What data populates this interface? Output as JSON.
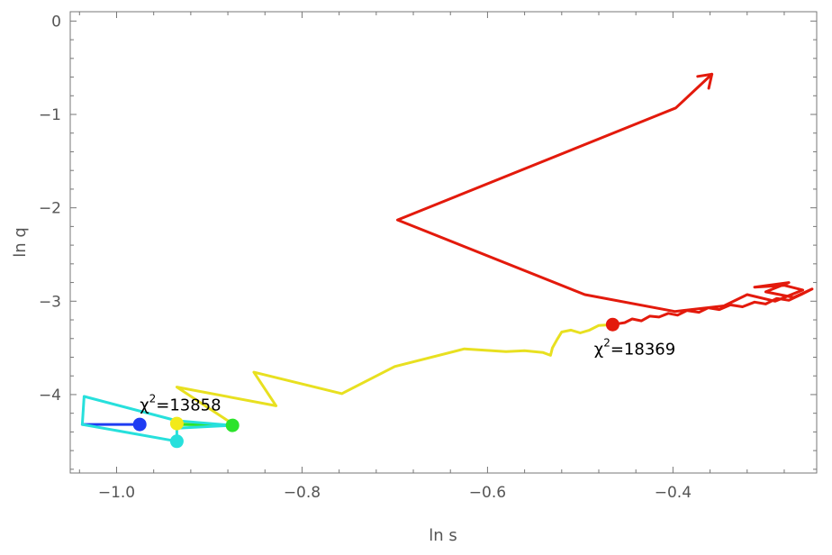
{
  "chart_data": {
    "type": "line",
    "xlabel": "ln s",
    "ylabel": "ln q",
    "xlim": [
      -1.05,
      -0.245
    ],
    "ylim": [
      -4.84,
      0.1
    ],
    "grid": false,
    "x_ticks": [
      {
        "value": -1.0,
        "label": "−1.0"
      },
      {
        "value": -0.8,
        "label": "−0.8"
      },
      {
        "value": -0.6,
        "label": "−0.6"
      },
      {
        "value": -0.4,
        "label": "−0.4"
      }
    ],
    "y_ticks": [
      {
        "value": 0,
        "label": "0"
      },
      {
        "value": -1,
        "label": "−1"
      },
      {
        "value": -2,
        "label": "−2"
      },
      {
        "value": -3,
        "label": "−3"
      },
      {
        "value": -4,
        "label": "−4"
      }
    ],
    "series": [
      {
        "color": "#e31a0c",
        "points": [
          [
            -0.465,
            -3.25
          ],
          [
            -0.452,
            -3.23
          ],
          [
            -0.444,
            -3.19
          ],
          [
            -0.434,
            -3.21
          ],
          [
            -0.425,
            -3.16
          ],
          [
            -0.415,
            -3.17
          ],
          [
            -0.405,
            -3.13
          ],
          [
            -0.395,
            -3.15
          ],
          [
            -0.385,
            -3.1
          ],
          [
            -0.372,
            -3.12
          ],
          [
            -0.362,
            -3.07
          ],
          [
            -0.35,
            -3.09
          ],
          [
            -0.338,
            -3.04
          ],
          [
            -0.325,
            -3.06
          ],
          [
            -0.312,
            -3.01
          ],
          [
            -0.3,
            -3.03
          ],
          [
            -0.288,
            -2.97
          ],
          [
            -0.275,
            -2.99
          ],
          [
            -0.262,
            -2.93
          ],
          [
            -0.25,
            -2.87
          ],
          [
            -0.27,
            -2.96
          ],
          [
            -0.3,
            -2.9
          ],
          [
            -0.275,
            -2.8
          ],
          [
            -0.312,
            -2.85
          ],
          [
            -0.28,
            -2.83
          ],
          [
            -0.26,
            -2.88
          ],
          [
            -0.29,
            -3.0
          ],
          [
            -0.32,
            -2.93
          ],
          [
            -0.345,
            -3.05
          ],
          [
            -0.398,
            -3.11
          ],
          [
            -0.495,
            -2.93
          ],
          [
            -0.697,
            -2.13
          ],
          [
            -0.397,
            -0.93
          ],
          [
            -0.358,
            -0.57
          ]
        ]
      },
      {
        "color": "#e8e020",
        "points": [
          [
            -0.465,
            -3.25
          ],
          [
            -0.48,
            -3.26
          ],
          [
            -0.49,
            -3.31
          ],
          [
            -0.5,
            -3.34
          ],
          [
            -0.51,
            -3.31
          ],
          [
            -0.52,
            -3.33
          ],
          [
            -0.525,
            -3.41
          ],
          [
            -0.53,
            -3.5
          ],
          [
            -0.532,
            -3.58
          ],
          [
            -0.54,
            -3.55
          ],
          [
            -0.56,
            -3.53
          ],
          [
            -0.58,
            -3.54
          ],
          [
            -0.625,
            -3.51
          ],
          [
            -0.7,
            -3.7
          ],
          [
            -0.757,
            -3.99
          ],
          [
            -0.852,
            -3.76
          ],
          [
            -0.828,
            -4.12
          ],
          [
            -0.935,
            -3.92
          ],
          [
            -0.88,
            -4.28
          ],
          [
            -0.875,
            -4.33
          ],
          [
            -0.935,
            -4.31
          ]
        ]
      },
      {
        "color": "#2be32b",
        "points": [
          [
            -0.935,
            -4.32
          ],
          [
            -0.875,
            -4.33
          ]
        ]
      },
      {
        "color": "#1f3cf2",
        "points": [
          [
            -0.975,
            -4.32
          ],
          [
            -1.037,
            -4.32
          ]
        ]
      },
      {
        "color": "#27e0dc",
        "points": [
          [
            -1.037,
            -4.32
          ],
          [
            -1.035,
            -4.02
          ],
          [
            -0.935,
            -4.28
          ],
          [
            -0.875,
            -4.33
          ],
          [
            -0.935,
            -4.36
          ],
          [
            -0.935,
            -4.5
          ],
          [
            -1.037,
            -4.32
          ]
        ]
      }
    ],
    "markers": [
      {
        "x": -0.465,
        "y": -3.25,
        "color": "#e31a0c"
      },
      {
        "x": -0.975,
        "y": -4.32,
        "color": "#1f3cf2"
      },
      {
        "x": -0.935,
        "y": -4.31,
        "color": "#f2ea1a"
      },
      {
        "x": -0.875,
        "y": -4.33,
        "color": "#2be32b"
      },
      {
        "x": -0.935,
        "y": -4.5,
        "color": "#27e0dc"
      }
    ],
    "annotations": [
      {
        "text_prefix": "χ",
        "sup": "2",
        "text_suffix": "=18369",
        "x": -0.485,
        "y": -3.57
      },
      {
        "text_prefix": "χ",
        "sup": "2",
        "text_suffix": "=13858",
        "x": -0.975,
        "y": -4.17
      }
    ]
  }
}
